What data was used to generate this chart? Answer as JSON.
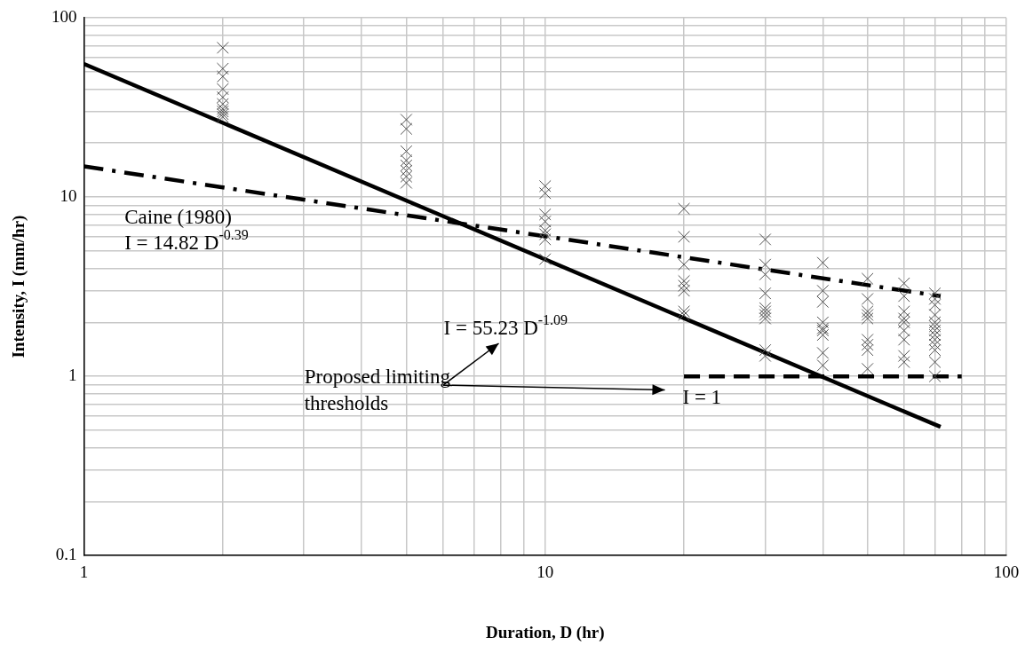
{
  "chart_data": {
    "type": "scatter",
    "xlabel": "Duration, D (hr)",
    "ylabel": "Intensity, I (mm/hr)",
    "log": "xy",
    "grid": true,
    "legend": false,
    "xlim": [
      1,
      100
    ],
    "ylim": [
      0.1,
      100
    ],
    "xticks": [
      1,
      {
        "value": 2,
        "label": null
      },
      {
        "value": 3,
        "label": null
      },
      {
        "value": 4,
        "label": null
      },
      {
        "value": 5,
        "label": null
      },
      {
        "value": 6,
        "label": null
      },
      {
        "value": 7,
        "label": null
      },
      {
        "value": 8,
        "label": null
      },
      {
        "value": 9,
        "label": null
      },
      10,
      {
        "value": 20,
        "label": null
      },
      {
        "value": 30,
        "label": null
      },
      {
        "value": 40,
        "label": null
      },
      {
        "value": 50,
        "label": null
      },
      {
        "value": 60,
        "label": null
      },
      {
        "value": 70,
        "label": null
      },
      {
        "value": 80,
        "label": null
      },
      {
        "value": 90,
        "label": null
      },
      100
    ],
    "yticks": [
      0.1,
      {
        "value": 0.2,
        "label": null
      },
      {
        "value": 0.3,
        "label": null
      },
      {
        "value": 0.4,
        "label": null
      },
      {
        "value": 0.5,
        "label": null
      },
      {
        "value": 0.6,
        "label": null
      },
      {
        "value": 0.7,
        "label": null
      },
      {
        "value": 0.8,
        "label": null
      },
      {
        "value": 0.9,
        "label": null
      },
      1,
      {
        "value": 2,
        "label": null
      },
      {
        "value": 3,
        "label": null
      },
      {
        "value": 4,
        "label": null
      },
      {
        "value": 5,
        "label": null
      },
      {
        "value": 6,
        "label": null
      },
      {
        "value": 7,
        "label": null
      },
      {
        "value": 8,
        "label": null
      },
      {
        "value": 9,
        "label": null
      },
      10,
      {
        "value": 20,
        "label": null
      },
      {
        "value": 30,
        "label": null
      },
      {
        "value": 40,
        "label": null
      },
      {
        "value": 50,
        "label": null
      },
      {
        "value": 60,
        "label": null
      },
      {
        "value": 70,
        "label": null
      },
      {
        "value": 80,
        "label": null
      },
      {
        "value": 90,
        "label": null
      },
      100
    ],
    "marker": "cross",
    "series": [
      {
        "color": "#505050",
        "x": [
          2,
          2,
          2,
          2,
          2,
          2,
          2,
          2,
          2,
          2,
          5,
          5,
          5,
          5,
          5,
          5,
          5,
          5,
          10,
          10,
          10,
          10,
          10,
          10,
          10,
          10,
          20,
          20,
          20,
          20,
          20,
          20,
          20,
          20,
          30,
          30,
          30,
          30,
          30,
          30,
          30,
          30,
          30,
          30,
          40,
          40,
          40,
          40,
          40,
          40,
          40,
          40,
          40,
          50,
          50,
          50,
          50,
          50,
          50,
          50,
          50,
          50,
          60,
          60,
          60,
          60,
          60,
          60,
          60,
          60,
          60,
          70,
          70,
          70,
          70,
          70,
          70,
          70,
          70,
          70,
          70,
          70,
          70,
          70
        ],
        "values": [
          68,
          52,
          47,
          40,
          36,
          33,
          31,
          30,
          29,
          28,
          27,
          24,
          18,
          16,
          15,
          14,
          13,
          12,
          11.5,
          10.5,
          8,
          7.3,
          6.5,
          6.2,
          5.8,
          4.5,
          8.6,
          6,
          4.2,
          3.4,
          3.2,
          3,
          2.3,
          2.2,
          5.8,
          4.2,
          3.7,
          2.9,
          2.4,
          2.3,
          2.2,
          2.1,
          1.4,
          1.3,
          4.3,
          3,
          2.6,
          2,
          1.85,
          1.8,
          1.7,
          1.35,
          1.15,
          3.5,
          2.7,
          2.3,
          2.2,
          2.1,
          1.6,
          1.5,
          1.4,
          1.1,
          3.3,
          2.8,
          2.3,
          2.1,
          2,
          1.8,
          1.6,
          1.3,
          1.2,
          2.9,
          2.7,
          2.5,
          2.2,
          2,
          1.9,
          1.8,
          1.7,
          1.6,
          1.5,
          1.4,
          1.2,
          1
        ]
      },
      {
        "type": "line",
        "color": "#000000",
        "line_style": "solid",
        "marker": "none",
        "x": [
          1,
          72
        ],
        "values": [
          55.23,
          0.522
        ]
      },
      {
        "type": "line",
        "color": "#000000",
        "line_style": "dashdot",
        "marker": "none",
        "x": [
          1,
          72
        ],
        "values": [
          14.82,
          2.8
        ]
      },
      {
        "type": "line",
        "color": "#000000",
        "line_style": "dashed",
        "marker": "none",
        "x": [
          20,
          80
        ],
        "values": [
          1,
          1
        ]
      }
    ],
    "annotations": [
      "Caine (1980)",
      "I = 14.82 D$^{-0.39}$",
      "I = 55.23 D$^{-1.09}$",
      "Proposed limiting thresholds",
      "I = 1"
    ]
  }
}
